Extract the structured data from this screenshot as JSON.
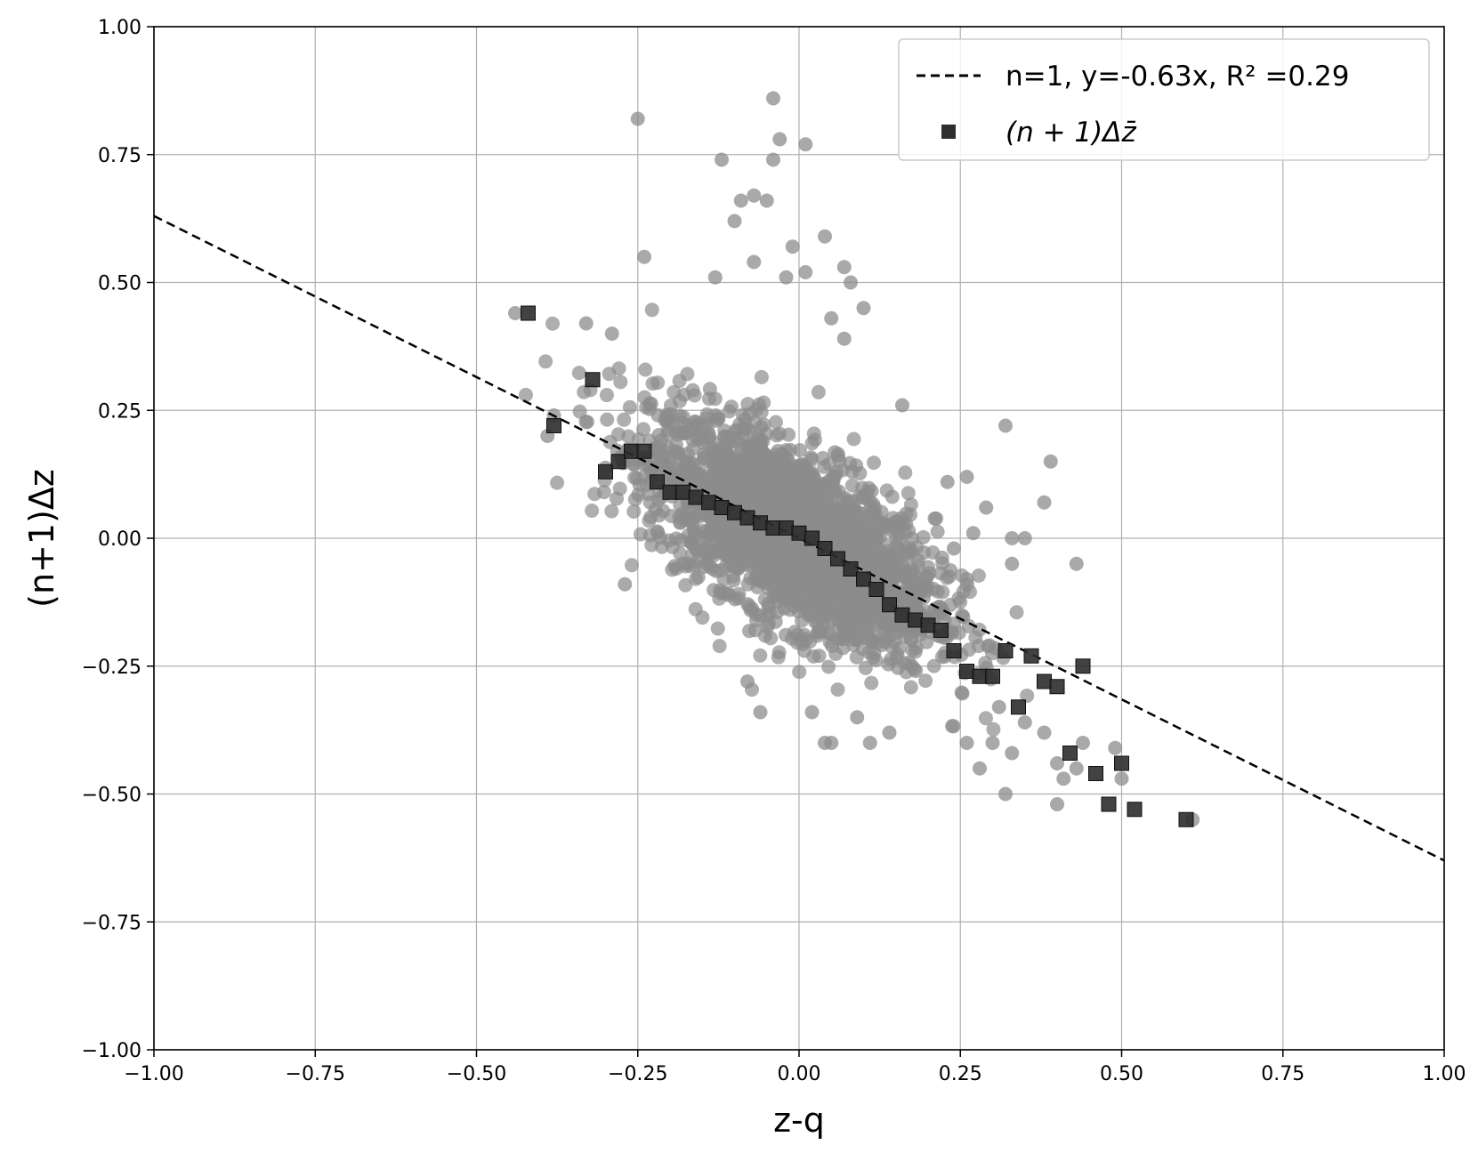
{
  "chart_data": {
    "type": "scatter",
    "xlabel": "z-q",
    "ylabel": "(n+1)Δz",
    "xlim": [
      -1.0,
      1.0
    ],
    "ylim": [
      -1.0,
      1.0
    ],
    "x_ticks": [
      "−1.00",
      "−0.75",
      "−0.50",
      "−0.25",
      "0.00",
      "0.25",
      "0.50",
      "0.75",
      "1.00"
    ],
    "y_ticks": [
      "−1.00",
      "−0.75",
      "−0.50",
      "−0.25",
      "0.00",
      "0.25",
      "0.50",
      "0.75",
      "1.00"
    ],
    "grid": true,
    "legend_position": "top-right",
    "colors": {
      "scatter": "#8c8c8c",
      "binned": "#2e2e2e",
      "fit_line": "#000000",
      "grid": "#b0b0b0"
    },
    "fit_line": {
      "label": "n=1, y=-0.63x, R² =0.29",
      "slope": -0.63,
      "intercept": 0,
      "style": "dashed"
    },
    "binned_series": {
      "label": "(n + 1)Δz̄",
      "x": [
        -0.42,
        -0.38,
        -0.32,
        -0.3,
        -0.28,
        -0.26,
        -0.24,
        -0.22,
        -0.2,
        -0.18,
        -0.16,
        -0.14,
        -0.12,
        -0.1,
        -0.08,
        -0.06,
        -0.04,
        -0.02,
        0.0,
        0.02,
        0.04,
        0.06,
        0.08,
        0.1,
        0.12,
        0.14,
        0.16,
        0.18,
        0.2,
        0.22,
        0.24,
        0.26,
        0.28,
        0.3,
        0.32,
        0.34,
        0.36,
        0.38,
        0.4,
        0.42,
        0.44,
        0.46,
        0.48,
        0.5,
        0.52,
        0.6
      ],
      "y": [
        0.44,
        0.22,
        0.31,
        0.13,
        0.15,
        0.17,
        0.17,
        0.11,
        0.09,
        0.09,
        0.08,
        0.07,
        0.06,
        0.05,
        0.04,
        0.03,
        0.02,
        0.02,
        0.01,
        0.0,
        -0.02,
        -0.04,
        -0.06,
        -0.08,
        -0.1,
        -0.13,
        -0.15,
        -0.16,
        -0.17,
        -0.18,
        -0.22,
        -0.26,
        -0.27,
        -0.27,
        -0.22,
        -0.33,
        -0.23,
        -0.28,
        -0.29,
        -0.42,
        -0.25,
        -0.46,
        -0.52,
        -0.44,
        -0.53,
        -0.55
      ]
    },
    "scatter_series": {
      "label": "",
      "outliers": [
        [
          -0.25,
          0.82
        ],
        [
          -0.04,
          0.86
        ],
        [
          -0.03,
          0.78
        ],
        [
          0.01,
          0.77
        ],
        [
          -0.12,
          0.74
        ],
        [
          -0.04,
          0.74
        ],
        [
          -0.07,
          0.67
        ],
        [
          -0.09,
          0.66
        ],
        [
          -0.05,
          0.66
        ],
        [
          -0.1,
          0.62
        ],
        [
          0.04,
          0.59
        ],
        [
          -0.01,
          0.57
        ],
        [
          -0.24,
          0.55
        ],
        [
          -0.07,
          0.54
        ],
        [
          0.07,
          0.53
        ],
        [
          -0.13,
          0.51
        ],
        [
          -0.02,
          0.51
        ],
        [
          0.01,
          0.52
        ],
        [
          0.08,
          0.5
        ],
        [
          -0.44,
          0.44
        ],
        [
          -0.33,
          0.42
        ],
        [
          -0.29,
          0.4
        ],
        [
          0.1,
          0.45
        ],
        [
          0.05,
          0.43
        ],
        [
          0.07,
          0.39
        ],
        [
          -0.39,
          0.2
        ],
        [
          -0.38,
          0.24
        ],
        [
          0.32,
          0.22
        ],
        [
          0.39,
          0.15
        ],
        [
          0.38,
          0.07
        ],
        [
          0.29,
          0.06
        ],
        [
          0.23,
          0.11
        ],
        [
          0.16,
          0.26
        ],
        [
          -0.27,
          -0.09
        ],
        [
          -0.08,
          -0.28
        ],
        [
          -0.06,
          -0.34
        ],
        [
          0.02,
          -0.34
        ],
        [
          0.04,
          -0.4
        ],
        [
          0.05,
          -0.4
        ],
        [
          0.09,
          -0.35
        ],
        [
          0.11,
          -0.4
        ],
        [
          0.14,
          -0.38
        ],
        [
          0.32,
          -0.5
        ],
        [
          0.4,
          -0.52
        ],
        [
          0.43,
          -0.45
        ],
        [
          0.44,
          -0.4
        ],
        [
          0.49,
          -0.41
        ],
        [
          0.5,
          -0.47
        ],
        [
          0.61,
          -0.55
        ],
        [
          0.33,
          -0.42
        ],
        [
          0.35,
          -0.36
        ],
        [
          0.38,
          -0.38
        ],
        [
          0.4,
          -0.44
        ],
        [
          0.41,
          -0.47
        ],
        [
          0.3,
          -0.4
        ],
        [
          0.28,
          -0.45
        ],
        [
          0.26,
          -0.4
        ],
        [
          0.31,
          -0.33
        ],
        [
          0.43,
          -0.05
        ],
        [
          0.33,
          -0.05
        ],
        [
          0.33,
          0.0
        ],
        [
          0.35,
          0.0
        ],
        [
          0.26,
          -0.08
        ],
        [
          0.24,
          -0.02
        ],
        [
          0.27,
          0.01
        ],
        [
          0.26,
          0.12
        ]
      ]
    }
  }
}
